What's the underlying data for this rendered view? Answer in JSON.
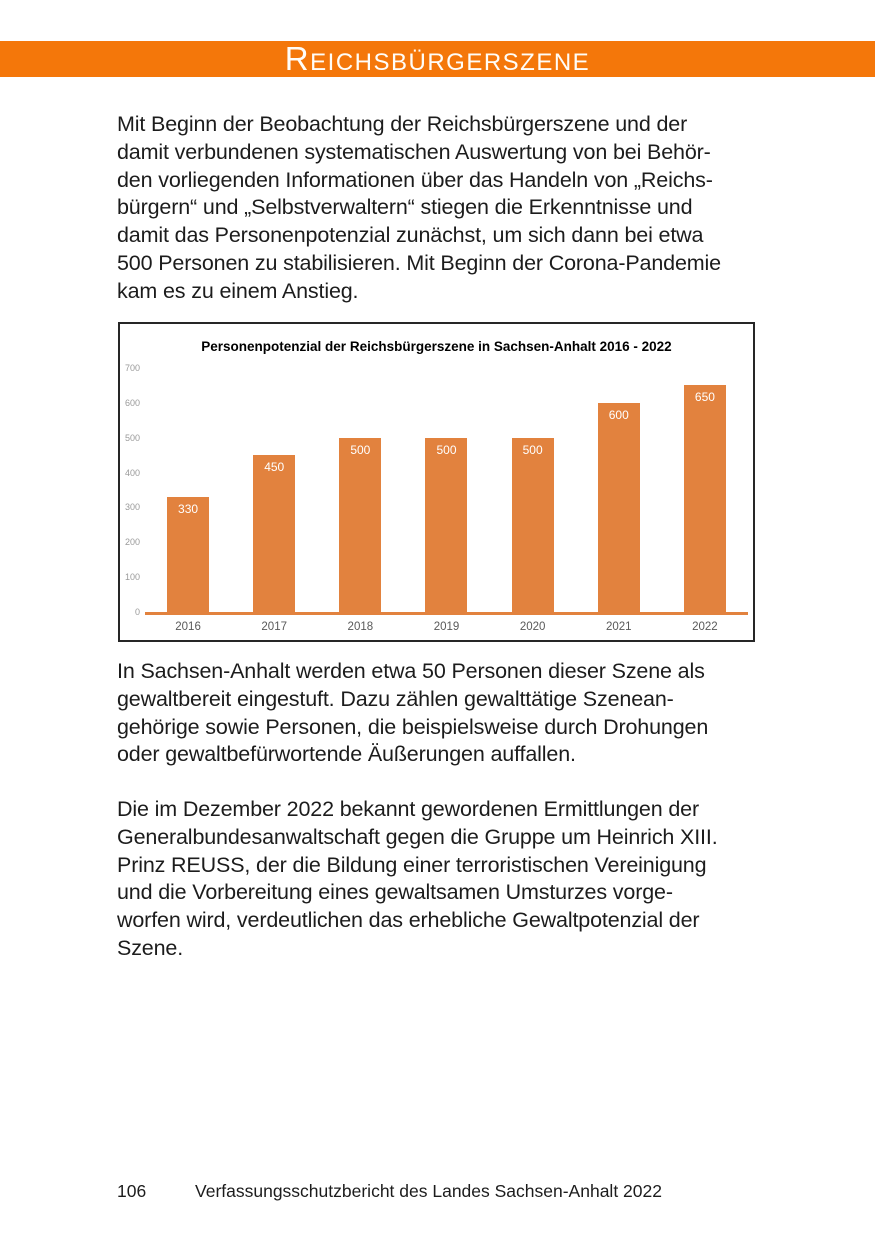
{
  "header": {
    "title_initial": "R",
    "title_rest": "EICHSBÜRGERSZENE"
  },
  "paragraphs": {
    "p1": "Mit Beginn der Beobachtung der Reichsbürgerszene und der\ndamit verbundenen systematischen Auswertung von bei Behör-\nden vorliegenden Informationen über das Handeln von „Reichs-\nbürgern“ und „Selbstverwaltern“ stiegen die Erkenntnisse und\ndamit das Personenpotenzial zunächst, um sich dann bei etwa\n500 Personen zu stabilisieren. Mit Beginn der Corona-Pandemie\nkam es zu einem Anstieg.",
    "p2": "In Sachsen-Anhalt werden etwa 50 Personen dieser Szene als\ngewaltbereit eingestuft. Dazu zählen gewalttätige Szenean-\ngehörige sowie Personen, die beispielsweise durch Drohungen\noder gewaltbefürwortende Äußerungen auffallen.",
    "p3": "Die im Dezember 2022 bekannt gewordenen Ermittlungen der\nGeneralbundesanwaltschaft gegen die Gruppe um Heinrich XIII.\nPrinz REUSS, der die Bildung einer terroristischen Vereinigung\nund die Vorbereitung eines gewaltsamen Umsturzes vorge-\nworfen wird, verdeutlichen das erhebliche Gewaltpotenzial der\nSzene.",
    "footer_page_number": "106",
    "footer_text": "Verfassungsschutzbericht des Landes Sachsen-Anhalt 2022"
  },
  "colors": {
    "banner_orange": "#f4770a",
    "bar_orange": "#e2823e",
    "axis_orange": "#e2823e",
    "chart_border": "#262626",
    "tick_gray": "#9a9a9a",
    "year_gray": "#595959"
  },
  "chart_data": {
    "type": "bar",
    "title": "Personenpotenzial der Reichsbürgerszene in Sachsen-Anhalt 2016 - 2022",
    "categories": [
      "2016",
      "2017",
      "2018",
      "2019",
      "2020",
      "2021",
      "2022"
    ],
    "values": [
      330,
      450,
      500,
      500,
      500,
      600,
      650
    ],
    "xlabel": "",
    "ylabel": "",
    "ylim": [
      0,
      700
    ],
    "yticks": [
      0,
      100,
      200,
      300,
      400,
      500,
      600,
      700
    ],
    "grid": "off",
    "legend": "none",
    "bar_color": "#e2823e",
    "axis_color": "#e2823e",
    "value_label_color": "#ffffff"
  }
}
